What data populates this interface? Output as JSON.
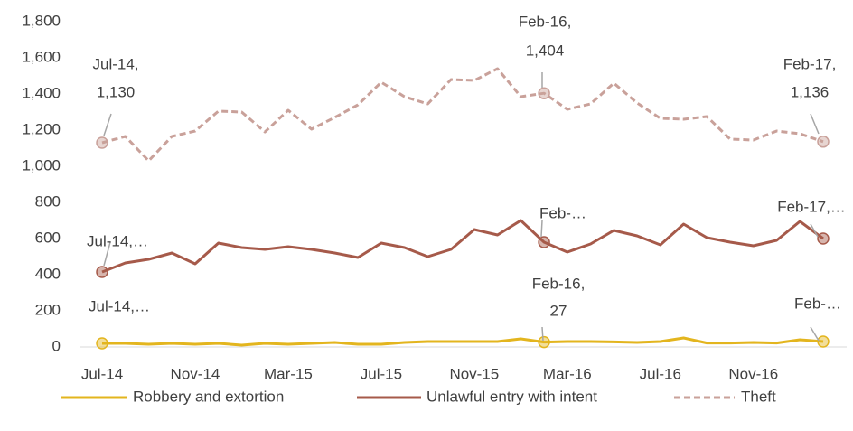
{
  "chart_data": {
    "type": "line",
    "categories": [
      "Jul-14",
      null,
      null,
      null,
      "Nov-14",
      null,
      null,
      null,
      "Mar-15",
      null,
      null,
      null,
      "Jul-15",
      null,
      null,
      null,
      "Nov-15",
      null,
      null,
      null,
      "Mar-16",
      null,
      null,
      null,
      "Jul-16",
      null,
      null,
      null,
      "Nov-16",
      null,
      null,
      null
    ],
    "ylim": [
      0,
      1800
    ],
    "yticks": [
      0,
      200,
      400,
      600,
      800,
      {
        "value": 1000,
        "label": "1,000"
      },
      {
        "value": 1200,
        "label": "1,200"
      },
      {
        "value": 1400,
        "label": "1,400"
      },
      {
        "value": 1600,
        "label": "1,600"
      },
      {
        "value": 1800,
        "label": "1,800"
      }
    ],
    "grid": false,
    "legend": "bottom",
    "series": [
      {
        "name": "Robbery and extortion",
        "color": "#e3b51e",
        "dashed": false,
        "values": [
          20,
          20,
          15,
          20,
          15,
          20,
          10,
          20,
          15,
          20,
          25,
          15,
          15,
          25,
          30,
          30,
          30,
          30,
          45,
          27,
          30,
          30,
          28,
          25,
          30,
          50,
          22,
          22,
          25,
          22,
          40,
          30
        ],
        "value_labels": [
          [
            "Jul-14,…"
          ],
          null,
          null,
          null,
          null,
          null,
          null,
          null,
          null,
          null,
          null,
          null,
          null,
          null,
          null,
          null,
          null,
          null,
          null,
          [
            "Feb-16,",
            "27"
          ],
          null,
          null,
          null,
          null,
          null,
          null,
          null,
          null,
          null,
          null,
          null,
          [
            "Feb-…"
          ]
        ]
      },
      {
        "name": "Unlawful entry with intent",
        "color": "#a65a4a",
        "dashed": false,
        "values": [
          415,
          465,
          485,
          520,
          460,
          575,
          550,
          540,
          555,
          540,
          520,
          495,
          575,
          550,
          500,
          540,
          650,
          620,
          700,
          580,
          525,
          570,
          645,
          615,
          565,
          680,
          605,
          580,
          560,
          590,
          695,
          600
        ],
        "value_labels": [
          [
            "Jul-14,…"
          ],
          null,
          null,
          null,
          null,
          null,
          null,
          null,
          null,
          null,
          null,
          null,
          null,
          null,
          null,
          null,
          null,
          null,
          null,
          [
            "Feb-…"
          ],
          null,
          null,
          null,
          null,
          null,
          null,
          null,
          null,
          null,
          null,
          null,
          [
            "Feb-17,…"
          ]
        ]
      },
      {
        "name": "Theft",
        "color": "#c9a19a",
        "dashed": true,
        "values": [
          1130,
          1165,
          1030,
          1165,
          1195,
          1305,
          1300,
          1190,
          1310,
          1205,
          1270,
          1340,
          1465,
          1385,
          1345,
          1480,
          1475,
          1540,
          1385,
          1404,
          1315,
          1345,
          1460,
          1350,
          1265,
          1260,
          1275,
          1150,
          1145,
          1195,
          1180,
          1136
        ],
        "value_labels": [
          [
            "Jul-14,",
            "1,130"
          ],
          null,
          null,
          null,
          null,
          null,
          null,
          null,
          null,
          null,
          null,
          null,
          null,
          null,
          null,
          null,
          null,
          null,
          null,
          [
            "Feb-16,",
            "1,404"
          ],
          null,
          null,
          null,
          null,
          null,
          null,
          null,
          null,
          null,
          null,
          null,
          [
            "Feb-17,",
            "1,136"
          ]
        ]
      }
    ]
  }
}
